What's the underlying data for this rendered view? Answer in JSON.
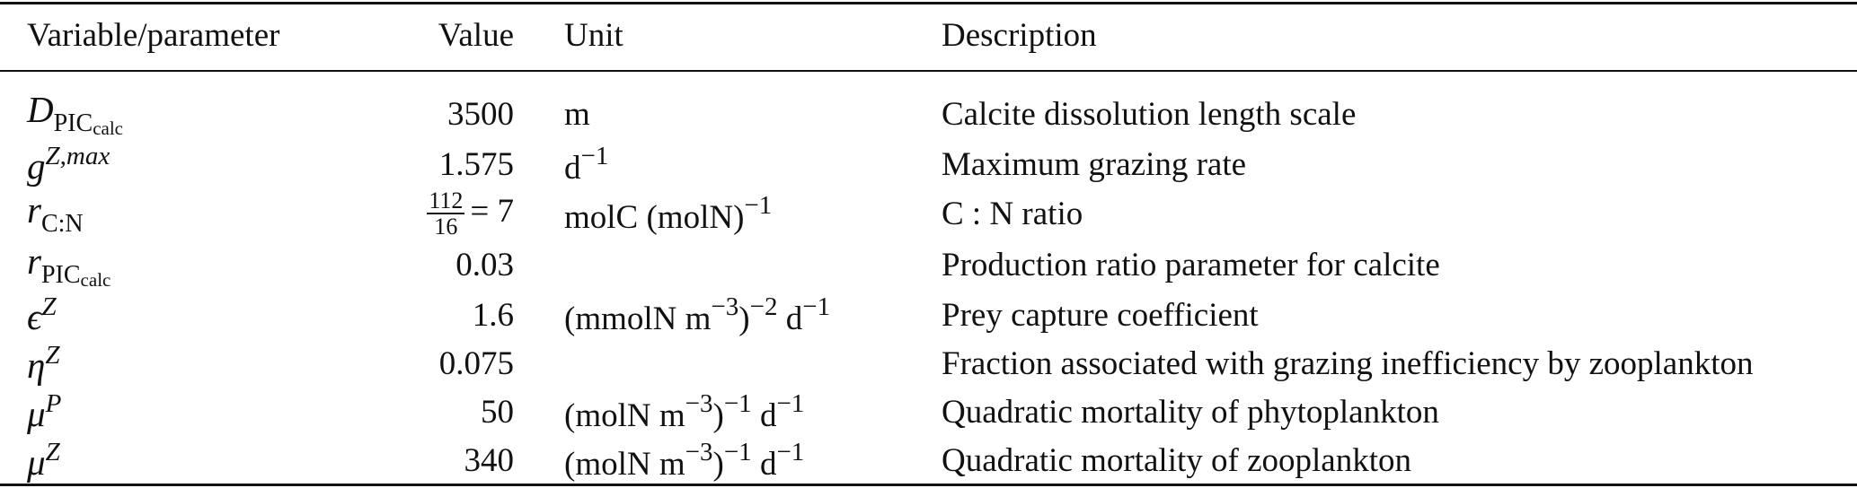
{
  "table": {
    "headers": {
      "variable": "Variable/parameter",
      "value": "Value",
      "unit": "Unit",
      "description": "Description"
    },
    "rows": [
      {
        "symbol": "D",
        "symbol_sub": "PIC",
        "symbol_subsub": "calc",
        "symbol_sup": "",
        "value": "3500",
        "unit": {
          "base": "m",
          "sup1": "",
          "mid": "",
          "sup2": ""
        },
        "description": "Calcite dissolution length scale"
      },
      {
        "symbol": "g",
        "symbol_sub": "",
        "symbol_subsub": "",
        "symbol_sup": "Z,max",
        "value": "1.575",
        "unit": {
          "base": "d",
          "sup1": "−1",
          "mid": "",
          "sup2": ""
        },
        "description": "Maximum grazing rate"
      },
      {
        "symbol": "r",
        "symbol_sub": "C:N",
        "symbol_subsub": "",
        "symbol_sup": "",
        "value": "= 7",
        "value_frac_num": "112",
        "value_frac_den": "16",
        "unit": {
          "base": "molC (molN)",
          "sup1": "−1",
          "mid": "",
          "sup2": ""
        },
        "description": "C : N ratio"
      },
      {
        "symbol": "r",
        "symbol_sub": "PIC",
        "symbol_subsub": "calc",
        "symbol_sup": "",
        "value": "0.03",
        "unit": {
          "base": "",
          "sup1": "",
          "mid": "",
          "sup2": ""
        },
        "description": "Production ratio parameter for calcite"
      },
      {
        "symbol": "ϵ",
        "symbol_sub": "",
        "symbol_subsub": "",
        "symbol_sup": "Z",
        "value": "1.6",
        "unit": {
          "base": "(mmolN m",
          "sup1": "−3",
          "mid": ")",
          "sup2": "−2",
          "tail": " d",
          "sup3": "−1"
        },
        "description": "Prey capture coefficient"
      },
      {
        "symbol": "η",
        "symbol_sub": "",
        "symbol_subsub": "",
        "symbol_sup": "Z",
        "value": "0.075",
        "unit": {
          "base": "",
          "sup1": "",
          "mid": "",
          "sup2": ""
        },
        "description": "Fraction associated with grazing inefficiency by zooplankton"
      },
      {
        "symbol": "μ",
        "symbol_sub": "",
        "symbol_subsub": "",
        "symbol_sup": "P",
        "value": "50",
        "unit": {
          "base": "(molN m",
          "sup1": "−3",
          "mid": ")",
          "sup2": "−1",
          "tail": " d",
          "sup3": "−1"
        },
        "description": "Quadratic mortality of phytoplankton"
      },
      {
        "symbol": "μ",
        "symbol_sub": "",
        "symbol_subsub": "",
        "symbol_sup": "Z",
        "value": "340",
        "unit": {
          "base": "(molN m",
          "sup1": "−3",
          "mid": ")",
          "sup2": "−1",
          "tail": " d",
          "sup3": "−1"
        },
        "description": "Quadratic mortality of zooplankton"
      }
    ]
  }
}
